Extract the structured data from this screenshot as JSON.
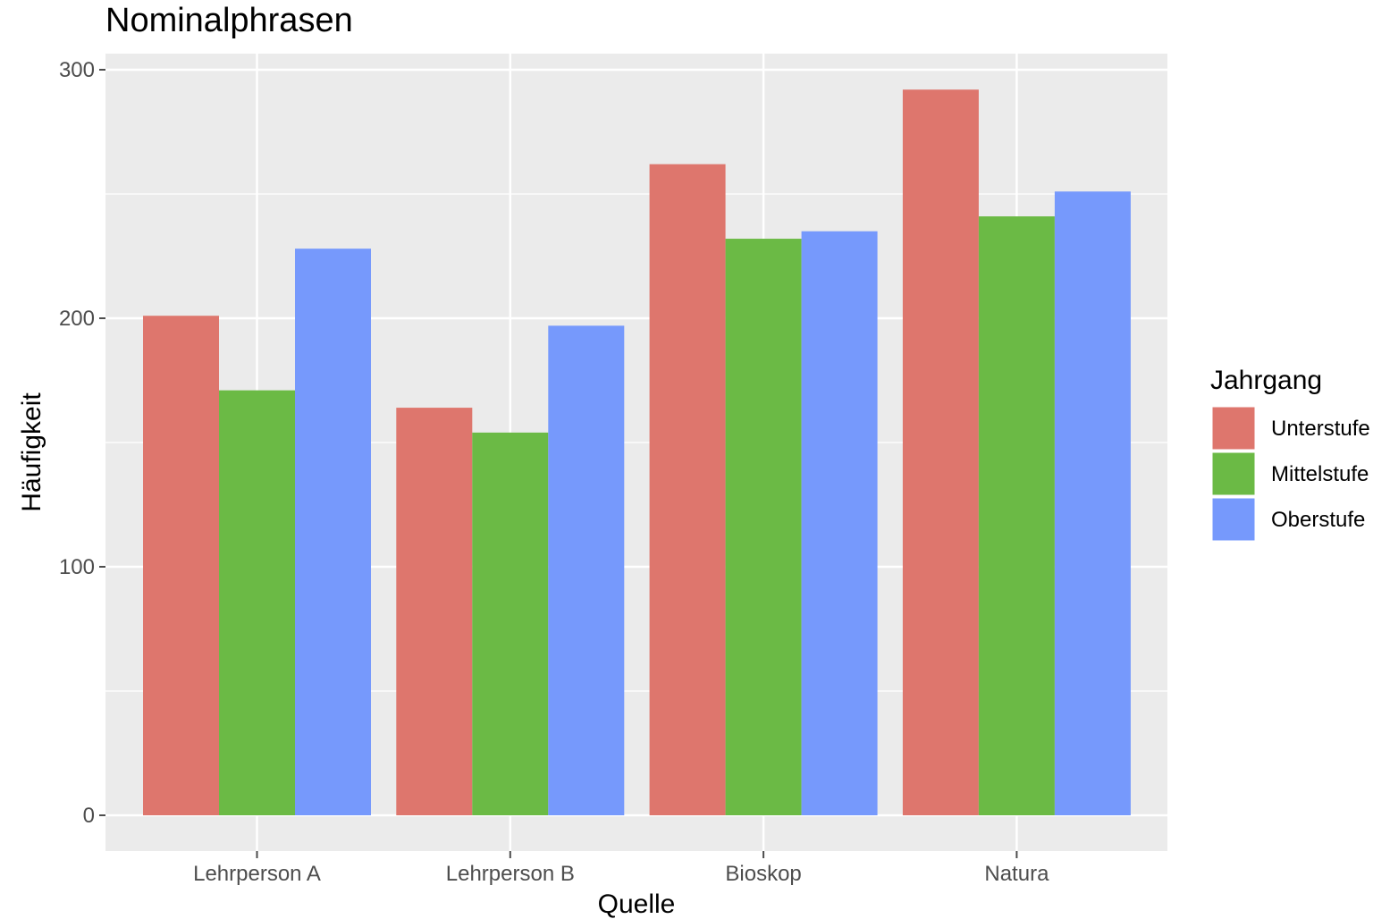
{
  "chart_data": {
    "type": "bar",
    "title": "Nominalphrasen",
    "xlabel": "Quelle",
    "ylabel": "Häufigkeit",
    "categories": [
      "Lehrperson A",
      "Lehrperson B",
      "Bioskop",
      "Natura"
    ],
    "series": [
      {
        "name": "Unterstufe",
        "color": "#DE766D",
        "values": [
          201,
          164,
          262,
          292
        ]
      },
      {
        "name": "Mittelstufe",
        "color": "#6BBA45",
        "values": [
          171,
          154,
          232,
          241
        ]
      },
      {
        "name": "Oberstufe",
        "color": "#7699FC",
        "values": [
          228,
          197,
          235,
          251
        ]
      }
    ],
    "ylim": [
      0,
      300
    ],
    "yticks": [
      0,
      100,
      200,
      300
    ],
    "grid": true,
    "legend": {
      "title": "Jahrgang",
      "placement": "right"
    },
    "panel_background": "#EBEBEB",
    "grid_color": "#FFFFFF",
    "tick_color": "#4D4D4D"
  }
}
